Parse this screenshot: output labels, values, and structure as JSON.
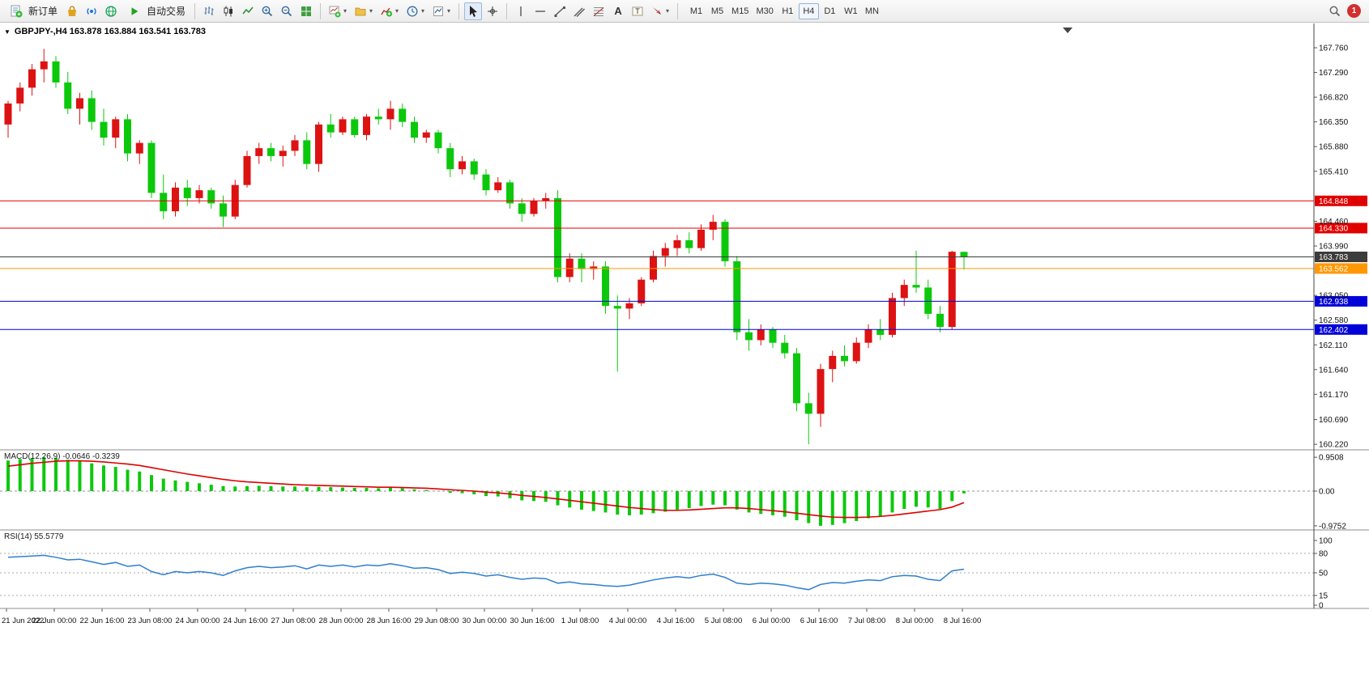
{
  "toolbar": {
    "new_order": "新订单",
    "auto_trading": "自动交易",
    "timeframes": [
      "M1",
      "M5",
      "M15",
      "M30",
      "H1",
      "H4",
      "D1",
      "W1",
      "MN"
    ],
    "active_timeframe": "H4",
    "notification_badge": "1"
  },
  "chart": {
    "title": "GBPJPY-,H4 163.878 163.884 163.541 163.783",
    "symbol": "GBPJPY-",
    "period": "H4",
    "open": "163.878",
    "high": "163.884",
    "low": "163.541",
    "close": "163.783"
  },
  "colors": {
    "bull": "#dd1212",
    "bear": "#0cc80c",
    "macd_hist": "#0cc80c",
    "macd_signal": "#dd0000",
    "rsi_line": "#2e7fce",
    "line_red": "#e00000",
    "line_blue": "#0000d8",
    "line_orange": "#ff9800",
    "line_black": "#3c3c3c",
    "axis_text": "#111111",
    "grid_dash": "#a8a8a8"
  },
  "chart_data": {
    "type": "candlestick",
    "symbol": "GBPJPY-",
    "timeframe": "H4",
    "title": "GBPJPY-,H4 163.878 163.884 163.541 163.783",
    "candles": [
      [
        166.3,
        166.75,
        166.05,
        166.7
      ],
      [
        166.7,
        167.1,
        166.55,
        167.0
      ],
      [
        167.0,
        167.45,
        166.85,
        167.35
      ],
      [
        167.35,
        167.74,
        167.1,
        167.5
      ],
      [
        167.5,
        167.6,
        167.0,
        167.1
      ],
      [
        167.1,
        167.3,
        166.5,
        166.6
      ],
      [
        166.6,
        166.9,
        166.3,
        166.8
      ],
      [
        166.8,
        166.95,
        166.2,
        166.35
      ],
      [
        166.35,
        166.6,
        165.9,
        166.05
      ],
      [
        166.05,
        166.45,
        165.85,
        166.4
      ],
      [
        166.4,
        166.5,
        165.6,
        165.75
      ],
      [
        165.75,
        166.0,
        165.55,
        165.95
      ],
      [
        165.95,
        166.0,
        164.9,
        165.0
      ],
      [
        165.0,
        165.35,
        164.5,
        164.65
      ],
      [
        164.65,
        165.2,
        164.55,
        165.1
      ],
      [
        165.1,
        165.25,
        164.75,
        164.9
      ],
      [
        164.9,
        165.15,
        164.8,
        165.05
      ],
      [
        165.05,
        165.1,
        164.7,
        164.8
      ],
      [
        164.8,
        164.95,
        164.35,
        164.55
      ],
      [
        164.55,
        165.25,
        164.5,
        165.15
      ],
      [
        165.15,
        165.8,
        165.1,
        165.7
      ],
      [
        165.7,
        165.95,
        165.55,
        165.85
      ],
      [
        165.85,
        165.95,
        165.6,
        165.7
      ],
      [
        165.7,
        165.9,
        165.5,
        165.8
      ],
      [
        165.8,
        166.1,
        165.7,
        166.0
      ],
      [
        166.0,
        166.15,
        165.45,
        165.55
      ],
      [
        165.55,
        166.35,
        165.4,
        166.3
      ],
      [
        166.3,
        166.5,
        166.05,
        166.15
      ],
      [
        166.15,
        166.45,
        166.1,
        166.4
      ],
      [
        166.4,
        166.45,
        166.05,
        166.1
      ],
      [
        166.1,
        166.5,
        166.0,
        166.45
      ],
      [
        166.45,
        166.6,
        166.3,
        166.4
      ],
      [
        166.4,
        166.75,
        166.2,
        166.6
      ],
      [
        166.6,
        166.7,
        166.25,
        166.35
      ],
      [
        166.35,
        166.45,
        165.95,
        166.05
      ],
      [
        166.05,
        166.2,
        165.95,
        166.15
      ],
      [
        166.15,
        166.2,
        165.75,
        165.85
      ],
      [
        165.85,
        165.95,
        165.3,
        165.45
      ],
      [
        165.45,
        165.7,
        165.35,
        165.6
      ],
      [
        165.6,
        165.65,
        165.25,
        165.35
      ],
      [
        165.35,
        165.45,
        164.95,
        165.05
      ],
      [
        165.05,
        165.3,
        165.0,
        165.2
      ],
      [
        165.2,
        165.25,
        164.7,
        164.8
      ],
      [
        164.8,
        164.9,
        164.45,
        164.6
      ],
      [
        164.6,
        164.9,
        164.55,
        164.85
      ],
      [
        164.85,
        165.0,
        164.7,
        164.9
      ],
      [
        164.9,
        165.05,
        163.3,
        163.4
      ],
      [
        163.4,
        163.85,
        163.3,
        163.75
      ],
      [
        163.75,
        163.85,
        163.3,
        163.55
      ],
      [
        163.55,
        163.7,
        163.35,
        163.6
      ],
      [
        163.6,
        163.7,
        162.7,
        162.85
      ],
      [
        162.85,
        163.05,
        161.6,
        162.8
      ],
      [
        162.8,
        163.0,
        162.6,
        162.9
      ],
      [
        162.9,
        163.4,
        162.85,
        163.35
      ],
      [
        163.35,
        163.9,
        163.3,
        163.8
      ],
      [
        163.8,
        164.05,
        163.6,
        163.95
      ],
      [
        163.95,
        164.2,
        163.8,
        164.1
      ],
      [
        164.1,
        164.25,
        163.85,
        163.95
      ],
      [
        163.95,
        164.4,
        163.9,
        164.3
      ],
      [
        164.3,
        164.58,
        164.1,
        164.45
      ],
      [
        164.45,
        164.5,
        163.6,
        163.7
      ],
      [
        163.7,
        163.8,
        162.2,
        162.35
      ],
      [
        162.35,
        162.6,
        162.0,
        162.2
      ],
      [
        162.2,
        162.5,
        162.1,
        162.4
      ],
      [
        162.4,
        162.45,
        162.05,
        162.15
      ],
      [
        162.15,
        162.3,
        161.85,
        161.95
      ],
      [
        161.95,
        162.05,
        160.85,
        161.0
      ],
      [
        161.0,
        161.2,
        160.22,
        160.8
      ],
      [
        160.8,
        161.75,
        160.55,
        161.65
      ],
      [
        161.65,
        162.0,
        161.4,
        161.9
      ],
      [
        161.9,
        162.1,
        161.7,
        161.8
      ],
      [
        161.8,
        162.25,
        161.75,
        162.15
      ],
      [
        162.15,
        162.5,
        162.05,
        162.4
      ],
      [
        162.4,
        162.6,
        162.2,
        162.3
      ],
      [
        162.3,
        163.1,
        162.25,
        163.0
      ],
      [
        163.0,
        163.35,
        162.85,
        163.25
      ],
      [
        163.25,
        163.9,
        163.1,
        163.2
      ],
      [
        163.2,
        163.35,
        162.6,
        162.7
      ],
      [
        162.7,
        162.85,
        162.35,
        162.45
      ],
      [
        162.45,
        163.9,
        162.4,
        163.88
      ],
      [
        163.878,
        163.884,
        163.541,
        163.783
      ]
    ],
    "time_labels": [
      "21 Jun 2022",
      "22 Jun 00:00",
      "22 Jun 16:00",
      "23 Jun 08:00",
      "24 Jun 00:00",
      "24 Jun 16:00",
      "27 Jun 08:00",
      "28 Jun 00:00",
      "28 Jun 16:00",
      "29 Jun 08:00",
      "30 Jun 00:00",
      "30 Jun 16:00",
      "1 Jul 08:00",
      "4 Jul 00:00",
      "4 Jul 16:00",
      "5 Jul 08:00",
      "6 Jul 00:00",
      "6 Jul 16:00",
      "7 Jul 08:00",
      "8 Jul 00:00",
      "8 Jul 16:00"
    ],
    "price_axis": [
      {
        "text": "167.760",
        "price": 167.76
      },
      {
        "text": "167.290",
        "price": 167.29
      },
      {
        "text": "166.820",
        "price": 166.82
      },
      {
        "text": "166.350",
        "price": 166.35
      },
      {
        "text": "165.880",
        "price": 165.88
      },
      {
        "text": "165.410",
        "price": 165.41
      },
      {
        "text": "164.460",
        "price": 164.46
      },
      {
        "text": "163.990",
        "price": 163.99
      },
      {
        "text": "163.050",
        "price": 163.05
      },
      {
        "text": "162.580",
        "price": 162.58
      },
      {
        "text": "162.110",
        "price": 162.11
      },
      {
        "text": "161.640",
        "price": 161.64
      },
      {
        "text": "161.170",
        "price": 161.17
      },
      {
        "text": "160.690",
        "price": 160.69
      },
      {
        "text": "160.220",
        "price": 160.22
      }
    ],
    "hlines": [
      {
        "text": "164.848",
        "price": 164.848,
        "color_key": "line_red"
      },
      {
        "text": "164.330",
        "price": 164.33,
        "color_key": "line_red"
      },
      {
        "text": "163.783",
        "price": 163.783,
        "color_key": "line_black"
      },
      {
        "text": "163.562",
        "price": 163.562,
        "color_key": "line_orange"
      },
      {
        "text": "162.938",
        "price": 162.938,
        "color_key": "line_blue"
      },
      {
        "text": "162.402",
        "price": 162.402,
        "color_key": "line_blue"
      }
    ],
    "indicators": {
      "macd": {
        "display": "MACD(12,26,9) -0.0646 -0.3239",
        "name": "MACD(12,26,9)",
        "value_main": "-0.0646",
        "value_signal": "-0.3239",
        "axis": [
          {
            "text": "0.9508",
            "value": 0.9508
          },
          {
            "text": "0.00",
            "value": 0
          },
          {
            "text": "-0.9752",
            "value": -0.9752
          }
        ],
        "histogram": [
          0.86,
          0.9,
          0.93,
          0.9508,
          0.93,
          0.88,
          0.84,
          0.78,
          0.72,
          0.68,
          0.6,
          0.55,
          0.45,
          0.35,
          0.3,
          0.26,
          0.22,
          0.18,
          0.14,
          0.13,
          0.14,
          0.15,
          0.14,
          0.13,
          0.13,
          0.11,
          0.12,
          0.11,
          0.1,
          0.09,
          0.09,
          0.08,
          0.1,
          0.08,
          0.05,
          0.03,
          0.0,
          -0.05,
          -0.06,
          -0.09,
          -0.14,
          -0.15,
          -0.2,
          -0.26,
          -0.28,
          -0.3,
          -0.4,
          -0.46,
          -0.52,
          -0.56,
          -0.6,
          -0.66,
          -0.68,
          -0.66,
          -0.62,
          -0.58,
          -0.52,
          -0.48,
          -0.42,
          -0.38,
          -0.4,
          -0.52,
          -0.6,
          -0.64,
          -0.68,
          -0.72,
          -0.82,
          -0.9,
          -0.9752,
          -0.95,
          -0.9,
          -0.84,
          -0.76,
          -0.7,
          -0.6,
          -0.5,
          -0.44,
          -0.46,
          -0.5,
          -0.28,
          -0.0646
        ],
        "signal": [
          0.7,
          0.74,
          0.78,
          0.81,
          0.84,
          0.85,
          0.85,
          0.84,
          0.82,
          0.79,
          0.76,
          0.72,
          0.66,
          0.6,
          0.54,
          0.48,
          0.43,
          0.38,
          0.33,
          0.29,
          0.26,
          0.24,
          0.22,
          0.2,
          0.18,
          0.17,
          0.16,
          0.15,
          0.14,
          0.13,
          0.12,
          0.11,
          0.11,
          0.1,
          0.09,
          0.08,
          0.06,
          0.04,
          0.02,
          0.0,
          -0.03,
          -0.05,
          -0.08,
          -0.12,
          -0.15,
          -0.18,
          -0.22,
          -0.26,
          -0.3,
          -0.34,
          -0.38,
          -0.42,
          -0.46,
          -0.49,
          -0.52,
          -0.54,
          -0.54,
          -0.53,
          -0.51,
          -0.49,
          -0.47,
          -0.47,
          -0.49,
          -0.52,
          -0.55,
          -0.58,
          -0.62,
          -0.66,
          -0.7,
          -0.73,
          -0.74,
          -0.74,
          -0.73,
          -0.71,
          -0.68,
          -0.64,
          -0.6,
          -0.56,
          -0.52,
          -0.45,
          -0.3239
        ]
      },
      "rsi": {
        "display": "RSI(14) 55.5779",
        "name": "RSI(14)",
        "value": "55.5779",
        "axis": [
          {
            "text": "100",
            "value": 100
          },
          {
            "text": "80",
            "value": 80
          },
          {
            "text": "50",
            "value": 50
          },
          {
            "text": "15",
            "value": 15
          },
          {
            "text": "0",
            "value": 0
          }
        ],
        "levels": [
          80,
          50,
          15
        ],
        "values": [
          74,
          75,
          76,
          77,
          74,
          70,
          71,
          67,
          63,
          66,
          60,
          62,
          52,
          47,
          52,
          50,
          52,
          50,
          46,
          53,
          58,
          60,
          58,
          59,
          61,
          56,
          62,
          60,
          62,
          59,
          62,
          61,
          64,
          61,
          57,
          58,
          55,
          49,
          51,
          49,
          45,
          47,
          43,
          40,
          42,
          41,
          34,
          36,
          33,
          32,
          30,
          29,
          31,
          35,
          39,
          42,
          44,
          42,
          46,
          48,
          43,
          34,
          32,
          34,
          33,
          31,
          27,
          24,
          32,
          35,
          34,
          37,
          39,
          38,
          44,
          46,
          45,
          40,
          38,
          53,
          55.5779
        ]
      }
    }
  }
}
